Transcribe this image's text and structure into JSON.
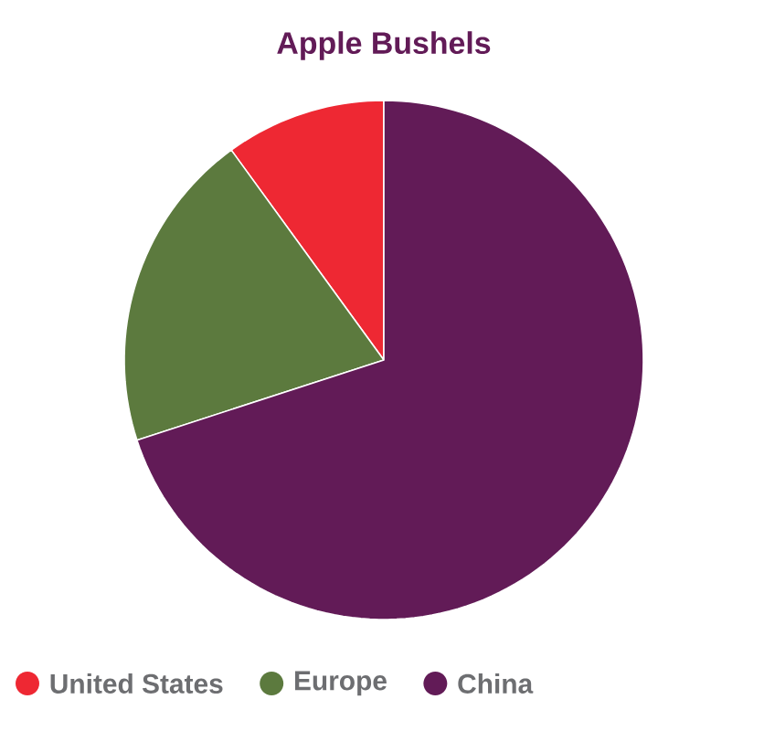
{
  "chart_data": {
    "type": "pie",
    "title": "Apple Bushels",
    "categories": [
      "United States",
      "Europe",
      "China"
    ],
    "values": [
      10,
      20,
      70
    ],
    "colors": [
      "#ee2833",
      "#5c7a3e",
      "#621b57"
    ],
    "legend": "bottom"
  }
}
